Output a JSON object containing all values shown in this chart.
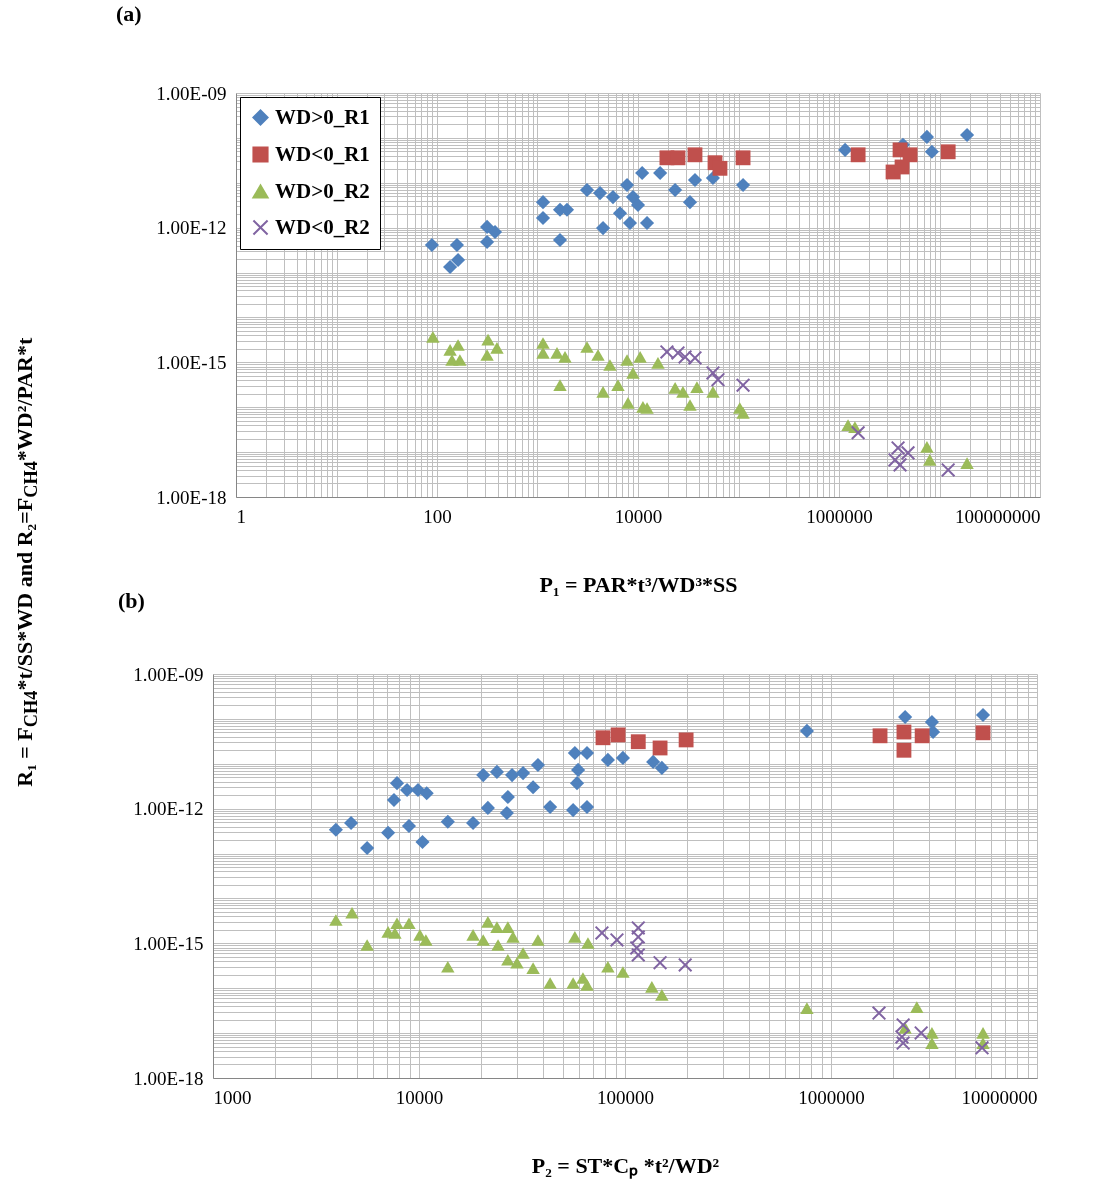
{
  "chart_data": [
    {
      "type": "scatter",
      "title": "(a)",
      "xlabel": "P₁ = PAR*t³/WD³*SS",
      "ylabel": "R₁ = F$_{CH4}$*t/SS*WD and R₂=F$_{CH4}$*WD²/PAR*t",
      "log": "xy",
      "grid": true,
      "legend": "top left",
      "xlim": [
        1,
        100000000
      ],
      "ylim": [
        1e-18,
        1e-09
      ],
      "xticks": [
        1,
        {
          "value": 2,
          "label": null
        },
        {
          "value": 3,
          "label": null
        },
        {
          "value": 4,
          "label": null
        },
        {
          "value": 5,
          "label": null
        },
        {
          "value": 6,
          "label": null
        },
        {
          "value": 7,
          "label": null
        },
        {
          "value": 8,
          "label": null
        },
        {
          "value": 9,
          "label": null
        },
        {
          "value": 10,
          "label": null
        },
        {
          "value": 20,
          "label": null
        },
        {
          "value": 30,
          "label": null
        },
        {
          "value": 40,
          "label": null
        },
        {
          "value": 50,
          "label": null
        },
        {
          "value": 60,
          "label": null
        },
        {
          "value": 70,
          "label": null
        },
        {
          "value": 80,
          "label": null
        },
        {
          "value": 90,
          "label": null
        },
        100,
        {
          "value": 200,
          "label": null
        },
        {
          "value": 300,
          "label": null
        },
        {
          "value": 400,
          "label": null
        },
        {
          "value": 500,
          "label": null
        },
        {
          "value": 600,
          "label": null
        },
        {
          "value": 700,
          "label": null
        },
        {
          "value": 800,
          "label": null
        },
        {
          "value": 900,
          "label": null
        },
        {
          "value": 1000,
          "label": null
        },
        {
          "value": 2000,
          "label": null
        },
        {
          "value": 3000,
          "label": null
        },
        {
          "value": 4000,
          "label": null
        },
        {
          "value": 5000,
          "label": null
        },
        {
          "value": 6000,
          "label": null
        },
        {
          "value": 7000,
          "label": null
        },
        {
          "value": 8000,
          "label": null
        },
        {
          "value": 9000,
          "label": null
        },
        10000,
        {
          "value": 20000,
          "label": null
        },
        {
          "value": 30000,
          "label": null
        },
        {
          "value": 40000,
          "label": null
        },
        {
          "value": 50000,
          "label": null
        },
        {
          "value": 60000,
          "label": null
        },
        {
          "value": 70000,
          "label": null
        },
        {
          "value": 80000,
          "label": null
        },
        {
          "value": 90000,
          "label": null
        },
        {
          "value": 100000,
          "label": null
        },
        {
          "value": 200000,
          "label": null
        },
        {
          "value": 300000,
          "label": null
        },
        {
          "value": 400000,
          "label": null
        },
        {
          "value": 500000,
          "label": null
        },
        {
          "value": 600000,
          "label": null
        },
        {
          "value": 700000,
          "label": null
        },
        {
          "value": 800000,
          "label": null
        },
        {
          "value": 900000,
          "label": null
        },
        1000000,
        {
          "value": 2000000,
          "label": null
        },
        {
          "value": 3000000,
          "label": null
        },
        {
          "value": 4000000,
          "label": null
        },
        {
          "value": 5000000,
          "label": null
        },
        {
          "value": 6000000,
          "label": null
        },
        {
          "value": 7000000,
          "label": null
        },
        {
          "value": 8000000,
          "label": null
        },
        {
          "value": 9000000,
          "label": null
        },
        {
          "value": 10000000,
          "label": null
        },
        {
          "value": 20000000,
          "label": null
        },
        {
          "value": 30000000,
          "label": null
        },
        {
          "value": 40000000,
          "label": null
        },
        {
          "value": 50000000,
          "label": null
        },
        {
          "value": 60000000,
          "label": null
        },
        {
          "value": 70000000,
          "label": null
        },
        {
          "value": 80000000,
          "label": null
        },
        {
          "value": 90000000,
          "label": null
        },
        100000000
      ],
      "yticks": [
        {
          "value": 1e-18,
          "label": "1.00E-18"
        },
        {
          "value": 2e-18,
          "label": null
        },
        {
          "value": 3e-18,
          "label": null
        },
        {
          "value": 4e-18,
          "label": null
        },
        {
          "value": 5e-18,
          "label": null
        },
        {
          "value": 6e-18,
          "label": null
        },
        {
          "value": 7e-18,
          "label": null
        },
        {
          "value": 8e-18,
          "label": null
        },
        {
          "value": 9e-18,
          "label": null
        },
        {
          "value": 1e-17,
          "label": null
        },
        {
          "value": 2e-17,
          "label": null
        },
        {
          "value": 3e-17,
          "label": null
        },
        {
          "value": 4e-17,
          "label": null
        },
        {
          "value": 5e-17,
          "label": null
        },
        {
          "value": 6e-17,
          "label": null
        },
        {
          "value": 7e-17,
          "label": null
        },
        {
          "value": 8e-17,
          "label": null
        },
        {
          "value": 9e-17,
          "label": null
        },
        {
          "value": 1e-16,
          "label": null
        },
        {
          "value": 2e-16,
          "label": null
        },
        {
          "value": 3e-16,
          "label": null
        },
        {
          "value": 4e-16,
          "label": null
        },
        {
          "value": 5e-16,
          "label": null
        },
        {
          "value": 6e-16,
          "label": null
        },
        {
          "value": 7e-16,
          "label": null
        },
        {
          "value": 8e-16,
          "label": null
        },
        {
          "value": 9e-16,
          "label": null
        },
        {
          "value": 1e-15,
          "label": "1.00E-15"
        },
        {
          "value": 2e-15,
          "label": null
        },
        {
          "value": 3e-15,
          "label": null
        },
        {
          "value": 4e-15,
          "label": null
        },
        {
          "value": 5e-15,
          "label": null
        },
        {
          "value": 6e-15,
          "label": null
        },
        {
          "value": 7e-15,
          "label": null
        },
        {
          "value": 8e-15,
          "label": null
        },
        {
          "value": 9e-15,
          "label": null
        },
        {
          "value": 1e-14,
          "label": null
        },
        {
          "value": 2e-14,
          "label": null
        },
        {
          "value": 3e-14,
          "label": null
        },
        {
          "value": 4e-14,
          "label": null
        },
        {
          "value": 5e-14,
          "label": null
        },
        {
          "value": 6e-14,
          "label": null
        },
        {
          "value": 7e-14,
          "label": null
        },
        {
          "value": 8e-14,
          "label": null
        },
        {
          "value": 9e-14,
          "label": null
        },
        {
          "value": 1e-13,
          "label": null
        },
        {
          "value": 2e-13,
          "label": null
        },
        {
          "value": 3e-13,
          "label": null
        },
        {
          "value": 4e-13,
          "label": null
        },
        {
          "value": 5e-13,
          "label": null
        },
        {
          "value": 6e-13,
          "label": null
        },
        {
          "value": 7e-13,
          "label": null
        },
        {
          "value": 8e-13,
          "label": null
        },
        {
          "value": 9e-13,
          "label": null
        },
        {
          "value": 1e-12,
          "label": "1.00E-12"
        },
        {
          "value": 2e-12,
          "label": null
        },
        {
          "value": 3e-12,
          "label": null
        },
        {
          "value": 4e-12,
          "label": null
        },
        {
          "value": 5e-12,
          "label": null
        },
        {
          "value": 6e-12,
          "label": null
        },
        {
          "value": 7e-12,
          "label": null
        },
        {
          "value": 8e-12,
          "label": null
        },
        {
          "value": 9e-12,
          "label": null
        },
        {
          "value": 1e-11,
          "label": null
        },
        {
          "value": 2e-11,
          "label": null
        },
        {
          "value": 3e-11,
          "label": null
        },
        {
          "value": 4e-11,
          "label": null
        },
        {
          "value": 5e-11,
          "label": null
        },
        {
          "value": 6e-11,
          "label": null
        },
        {
          "value": 7e-11,
          "label": null
        },
        {
          "value": 8e-11,
          "label": null
        },
        {
          "value": 9e-11,
          "label": null
        },
        {
          "value": 1e-10,
          "label": null
        },
        {
          "value": 2e-10,
          "label": null
        },
        {
          "value": 3e-10,
          "label": null
        },
        {
          "value": 4e-10,
          "label": null
        },
        {
          "value": 5e-10,
          "label": null
        },
        {
          "value": 6e-10,
          "label": null
        },
        {
          "value": 7e-10,
          "label": null
        },
        {
          "value": 8e-10,
          "label": null
        },
        {
          "value": 9e-10,
          "label": null
        },
        {
          "value": 1e-09,
          "label": "1.00E-09"
        }
      ],
      "series": [
        {
          "name": "WD>0_R1",
          "color": "#4f81bd",
          "marker": "diamond",
          "x": [
            89,
            135,
            158,
            162,
            315,
            315,
            378,
            1135,
            1135,
            1675,
            1966,
            1675,
            3110,
            4190,
            4490,
            5640,
            6620,
            7780,
            8320,
            8910,
            10000,
            12300,
            11000,
            16600,
            23400,
            32900,
            36900,
            55700,
            111000,
            1150000,
            4330000,
            7500000,
            8400000,
            18800000
          ],
          "values": [
            4.1e-13,
            1.33e-13,
            4.1e-13,
            1.9e-13,
            1.04e-12,
            4.8e-13,
            8e-13,
            3.7e-12,
            1.64e-12,
            2.5e-12,
            2.5e-12,
            5.3e-13,
            6.9e-12,
            5.9e-12,
            9.8e-13,
            4.8e-12,
            2.1e-12,
            8.9e-12,
            1.27e-12,
            4.8e-12,
            3.2e-12,
            1.27e-12,
            1.65e-11,
            1.65e-11,
            6.9e-12,
            3.7e-12,
            1.15e-11,
            1.28e-11,
            8.9e-12,
            5.4e-11,
            7e-11,
            1.05e-10,
            4.9e-11,
            1.16e-10
          ]
        },
        {
          "name": "WD<0_R1",
          "color": "#c0504d",
          "marker": "square",
          "x": [
            19400,
            25000,
            36900,
            58400,
            65400,
            111000,
            1550000,
            4050000,
            5100000,
            3450000,
            4240000,
            12200000
          ],
          "values": [
            3.6e-11,
            3.6e-11,
            4.2e-11,
            2.8e-11,
            2.1e-11,
            3.6e-11,
            4.2e-11,
            5.4e-11,
            4.2e-11,
            1.74e-11,
            2.25e-11,
            4.9e-11
          ]
        },
        {
          "name": "WD>0_R2",
          "color": "#9bbb59",
          "marker": "triangle",
          "x": [
            91,
            135,
            162,
            141,
            169,
            322,
            395,
            315,
            1135,
            1135,
            1563,
            1879,
            1675,
            3110,
            4000,
            5260,
            7780,
            10500,
            6320,
            4490,
            8910,
            7950,
            11200,
            12300,
            15800,
            23400,
            28000,
            38600,
            32900,
            55700,
            103000,
            111000,
            1230000,
            1440000,
            7500000,
            8000000,
            18800000
          ],
          "values": [
            3.7e-15,
            1.89e-15,
            2.44e-15,
            1.13e-15,
            1.13e-15,
            3.2e-15,
            2.1e-15,
            1.46e-15,
            2.7e-15,
            1.62e-15,
            1.62e-15,
            1.32e-15,
            3.1e-16,
            2.2e-15,
            1.46e-15,
            8.7e-16,
            1.13e-15,
            1.32e-15,
            3.1e-16,
            2.2e-16,
            5.8e-16,
            1.25e-16,
            1.02e-16,
            9.6e-17,
            9.7e-16,
            2.7e-16,
            2.2e-16,
            2.8e-16,
            1.12e-16,
            2.2e-16,
            9.6e-17,
            7.5e-17,
            4e-17,
            3.6e-17,
            1.31e-17,
            6.7e-18,
            5.7e-18
          ]
        },
        {
          "name": "WD<0_R2",
          "color": "#8064a2",
          "marker": "cross",
          "x": [
            19400,
            25000,
            29400,
            36900,
            55700,
            62500,
            111000,
            1550000,
            3870000,
            3610000,
            4050000,
            4860000,
            12200000
          ],
          "values": [
            1.7e-15,
            1.62e-15,
            1.32e-15,
            1.25e-15,
            5.8e-16,
            4.1e-16,
            3.1e-16,
            2.7e-17,
            1.24e-17,
            6.7e-18,
            5.2e-18,
            9.6e-18,
            4e-18
          ]
        }
      ]
    },
    {
      "type": "scatter",
      "title": "(b)",
      "xlabel": "P₂ = ST*Cₚ *t²/WD²",
      "log": "xy",
      "grid": true,
      "xlim": [
        1000,
        10000000
      ],
      "ylim": [
        1e-18,
        1e-09
      ],
      "xticks": [
        1000,
        {
          "value": 2000,
          "label": null
        },
        {
          "value": 3000,
          "label": null
        },
        {
          "value": 4000,
          "label": null
        },
        {
          "value": 5000,
          "label": null
        },
        {
          "value": 6000,
          "label": null
        },
        {
          "value": 7000,
          "label": null
        },
        {
          "value": 8000,
          "label": null
        },
        {
          "value": 9000,
          "label": null
        },
        10000,
        {
          "value": 20000,
          "label": null
        },
        {
          "value": 30000,
          "label": null
        },
        {
          "value": 40000,
          "label": null
        },
        {
          "value": 50000,
          "label": null
        },
        {
          "value": 60000,
          "label": null
        },
        {
          "value": 70000,
          "label": null
        },
        {
          "value": 80000,
          "label": null
        },
        {
          "value": 90000,
          "label": null
        },
        100000,
        {
          "value": 200000,
          "label": null
        },
        {
          "value": 300000,
          "label": null
        },
        {
          "value": 400000,
          "label": null
        },
        {
          "value": 500000,
          "label": null
        },
        {
          "value": 600000,
          "label": null
        },
        {
          "value": 700000,
          "label": null
        },
        {
          "value": 800000,
          "label": null
        },
        {
          "value": 900000,
          "label": null
        },
        1000000,
        {
          "value": 2000000,
          "label": null
        },
        {
          "value": 3000000,
          "label": null
        },
        {
          "value": 4000000,
          "label": null
        },
        {
          "value": 5000000,
          "label": null
        },
        {
          "value": 6000000,
          "label": null
        },
        {
          "value": 7000000,
          "label": null
        },
        {
          "value": 8000000,
          "label": null
        },
        {
          "value": 9000000,
          "label": null
        },
        10000000
      ],
      "yticks": [
        {
          "value": 1e-18,
          "label": "1.00E-18"
        },
        {
          "value": 2e-18,
          "label": null
        },
        {
          "value": 3e-18,
          "label": null
        },
        {
          "value": 4e-18,
          "label": null
        },
        {
          "value": 5e-18,
          "label": null
        },
        {
          "value": 6e-18,
          "label": null
        },
        {
          "value": 7e-18,
          "label": null
        },
        {
          "value": 8e-18,
          "label": null
        },
        {
          "value": 9e-18,
          "label": null
        },
        {
          "value": 1e-17,
          "label": null
        },
        {
          "value": 2e-17,
          "label": null
        },
        {
          "value": 3e-17,
          "label": null
        },
        {
          "value": 4e-17,
          "label": null
        },
        {
          "value": 5e-17,
          "label": null
        },
        {
          "value": 6e-17,
          "label": null
        },
        {
          "value": 7e-17,
          "label": null
        },
        {
          "value": 8e-17,
          "label": null
        },
        {
          "value": 9e-17,
          "label": null
        },
        {
          "value": 1e-16,
          "label": null
        },
        {
          "value": 2e-16,
          "label": null
        },
        {
          "value": 3e-16,
          "label": null
        },
        {
          "value": 4e-16,
          "label": null
        },
        {
          "value": 5e-16,
          "label": null
        },
        {
          "value": 6e-16,
          "label": null
        },
        {
          "value": 7e-16,
          "label": null
        },
        {
          "value": 8e-16,
          "label": null
        },
        {
          "value": 9e-16,
          "label": null
        },
        {
          "value": 1e-15,
          "label": "1.00E-15"
        },
        {
          "value": 2e-15,
          "label": null
        },
        {
          "value": 3e-15,
          "label": null
        },
        {
          "value": 4e-15,
          "label": null
        },
        {
          "value": 5e-15,
          "label": null
        },
        {
          "value": 6e-15,
          "label": null
        },
        {
          "value": 7e-15,
          "label": null
        },
        {
          "value": 8e-15,
          "label": null
        },
        {
          "value": 9e-15,
          "label": null
        },
        {
          "value": 1e-14,
          "label": null
        },
        {
          "value": 2e-14,
          "label": null
        },
        {
          "value": 3e-14,
          "label": null
        },
        {
          "value": 4e-14,
          "label": null
        },
        {
          "value": 5e-14,
          "label": null
        },
        {
          "value": 6e-14,
          "label": null
        },
        {
          "value": 7e-14,
          "label": null
        },
        {
          "value": 8e-14,
          "label": null
        },
        {
          "value": 9e-14,
          "label": null
        },
        {
          "value": 1e-13,
          "label": null
        },
        {
          "value": 2e-13,
          "label": null
        },
        {
          "value": 3e-13,
          "label": null
        },
        {
          "value": 4e-13,
          "label": null
        },
        {
          "value": 5e-13,
          "label": null
        },
        {
          "value": 6e-13,
          "label": null
        },
        {
          "value": 7e-13,
          "label": null
        },
        {
          "value": 8e-13,
          "label": null
        },
        {
          "value": 9e-13,
          "label": null
        },
        {
          "value": 1e-12,
          "label": "1.00E-12"
        },
        {
          "value": 2e-12,
          "label": null
        },
        {
          "value": 3e-12,
          "label": null
        },
        {
          "value": 4e-12,
          "label": null
        },
        {
          "value": 5e-12,
          "label": null
        },
        {
          "value": 6e-12,
          "label": null
        },
        {
          "value": 7e-12,
          "label": null
        },
        {
          "value": 8e-12,
          "label": null
        },
        {
          "value": 9e-12,
          "label": null
        },
        {
          "value": 1e-11,
          "label": null
        },
        {
          "value": 2e-11,
          "label": null
        },
        {
          "value": 3e-11,
          "label": null
        },
        {
          "value": 4e-11,
          "label": null
        },
        {
          "value": 5e-11,
          "label": null
        },
        {
          "value": 6e-11,
          "label": null
        },
        {
          "value": 7e-11,
          "label": null
        },
        {
          "value": 8e-11,
          "label": null
        },
        {
          "value": 9e-11,
          "label": null
        },
        {
          "value": 1e-10,
          "label": null
        },
        {
          "value": 2e-10,
          "label": null
        },
        {
          "value": 3e-10,
          "label": null
        },
        {
          "value": 4e-10,
          "label": null
        },
        {
          "value": 5e-10,
          "label": null
        },
        {
          "value": 6e-10,
          "label": null
        },
        {
          "value": 7e-10,
          "label": null
        },
        {
          "value": 8e-10,
          "label": null
        },
        {
          "value": 9e-10,
          "label": null
        },
        {
          "value": 1e-09,
          "label": "1.00E-09"
        }
      ],
      "series": [
        {
          "color": "#4f81bd",
          "marker": "diamond",
          "x": [
            3950,
            4680,
            5600,
            7080,
            8940,
            10400,
            13800,
            18300,
            7820,
            7560,
            8750,
            9890,
            10900,
            20500,
            23900,
            28300,
            32000,
            37800,
            35800,
            27000,
            21600,
            26700,
            43300,
            57100,
            65400,
            59200,
            58500,
            56000,
            65400,
            82600,
            97700,
            137000,
            151000,
            764000,
            2290000,
            3090000,
            3130000,
            5470000
          ],
          "values": [
            3.4e-13,
            4.8e-13,
            1.33e-13,
            2.9e-13,
            4.1e-13,
            1.81e-13,
            5.1e-13,
            4.8e-13,
            3.7e-12,
            1.56e-12,
            2.6e-12,
            2.6e-12,
            2.2e-12,
            5.6e-12,
            6.6e-12,
            5.6e-12,
            6.2e-12,
            9.4e-12,
            3e-12,
            1.82e-12,
            1.04e-12,
            8e-13,
            1.09e-12,
            1.74e-11,
            1.74e-11,
            7.3e-12,
            3.7e-12,
            9.3e-13,
            1.09e-12,
            1.22e-11,
            1.35e-11,
            1.1e-11,
            8.1e-12,
            5.4e-11,
            1.1e-10,
            8.5e-11,
            5.1e-11,
            1.22e-10
          ]
        },
        {
          "color": "#c0504d",
          "marker": "square",
          "x": [
            78200,
            92600,
            116000,
            148000,
            198000,
            1730000,
            2260000,
            2260000,
            2770000,
            5470000
          ],
          "values": [
            3.8e-11,
            4.4e-11,
            3.1e-11,
            2.25e-11,
            3.4e-11,
            4.2e-11,
            5.1e-11,
            2e-11,
            4.2e-11,
            4.9e-11
          ]
        },
        {
          "color": "#9bbb59",
          "marker": "triangle",
          "x": [
            3950,
            4730,
            5600,
            7080,
            7820,
            8940,
            7640,
            10100,
            10800,
            13800,
            18300,
            21600,
            23900,
            27000,
            20500,
            24200,
            28600,
            37800,
            27000,
            32000,
            35800,
            29900,
            43300,
            57100,
            66100,
            56000,
            62500,
            65400,
            82600,
            97700,
            135000,
            151000,
            764000,
            2610000,
            2290000,
            3090000,
            3090000,
            5470000,
            5470000
          ],
          "values": [
            3.3e-15,
            4.8e-15,
            9.2e-16,
            1.8e-15,
            2.8e-15,
            2.8e-15,
            1.7e-15,
            1.54e-15,
            1.19e-15,
            3e-16,
            1.54e-15,
            3e-15,
            2.3e-15,
            2.3e-15,
            1.19e-15,
            9.2e-16,
            1.39e-15,
            1.19e-15,
            4.3e-16,
            6.1e-16,
            2.8e-16,
            3.7e-16,
            1.31e-16,
            1.39e-15,
            1.02e-15,
            1.31e-16,
            1.69e-16,
            1.18e-16,
            3e-16,
            2.3e-16,
            1.07e-16,
            7.1e-17,
            3.6e-17,
            3.8e-17,
            1.31e-17,
            1.01e-17,
            6e-18,
            1.01e-17,
            6e-18
          ]
        },
        {
          "color": "#8064a2",
          "marker": "cross",
          "x": [
            77300,
            91400,
            116000,
            116000,
            114000,
            116000,
            148000,
            196000,
            1710000,
            2240000,
            2210000,
            2240000,
            2740000,
            5410000
          ],
          "values": [
            1.7e-15,
            1.19e-15,
            2.2e-15,
            1.39e-15,
            7.9e-16,
            5.5e-16,
            3.7e-16,
            3.3e-16,
            2.8e-17,
            1.52e-17,
            8.2e-18,
            6e-18,
            1.01e-17,
            4.7e-18
          ]
        }
      ]
    }
  ]
}
